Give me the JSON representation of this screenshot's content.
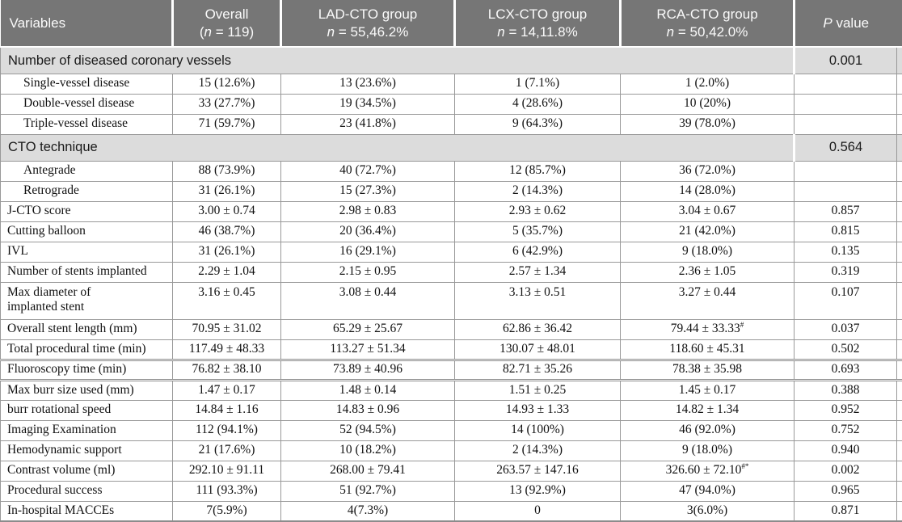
{
  "header": {
    "variables": "Variables",
    "p_value": "P value",
    "groups": [
      {
        "title": "Overall",
        "sub": "(n = 119)"
      },
      {
        "title": "LAD-CTO group",
        "sub": "n = 55,46.2%"
      },
      {
        "title": "LCX-CTO group",
        "sub": "n = 14,11.8%"
      },
      {
        "title": "RCA-CTO group",
        "sub": "n = 50,42.0%"
      }
    ]
  },
  "colors": {
    "header_bg": "#767676",
    "header_text": "#fafafa",
    "section_bg": "#dcdcdc",
    "grid_line": "#999999",
    "body_text": "#111111"
  },
  "rows": [
    {
      "type": "section",
      "label": "Number of diseased coronary vessels",
      "p": "0.001"
    },
    {
      "type": "data",
      "indent": true,
      "label": "Single-vessel disease",
      "values": [
        "15 (12.6%)",
        "13 (23.6%)",
        "1 (7.1%)",
        "1 (2.0%)",
        ""
      ]
    },
    {
      "type": "data",
      "indent": true,
      "label": "Double-vessel disease",
      "values": [
        "33 (27.7%)",
        "19 (34.5%)",
        "4 (28.6%)",
        "10 (20%)",
        ""
      ]
    },
    {
      "type": "data",
      "indent": true,
      "label": "Triple-vessel disease",
      "values": [
        "71 (59.7%)",
        "23 (41.8%)",
        "9 (64.3%)",
        "39 (78.0%)",
        ""
      ]
    },
    {
      "type": "section",
      "label": "CTO technique",
      "p": "0.564"
    },
    {
      "type": "data",
      "indent": true,
      "label": "Antegrade",
      "values": [
        "88 (73.9%)",
        "40 (72.7%)",
        "12 (85.7%)",
        "36 (72.0%)",
        ""
      ]
    },
    {
      "type": "data",
      "indent": true,
      "label": "Retrograde",
      "values": [
        "31 (26.1%)",
        "15 (27.3%)",
        "2 (14.3%)",
        "14 (28.0%)",
        ""
      ]
    },
    {
      "type": "data",
      "label": "J-CTO score",
      "values": [
        "3.00 ± 0.74",
        "2.98 ± 0.83",
        "2.93 ± 0.62",
        "3.04 ± 0.67",
        "0.857"
      ]
    },
    {
      "type": "data",
      "label": "Cutting balloon",
      "values": [
        "46 (38.7%)",
        "20 (36.4%)",
        "5 (35.7%)",
        "21 (42.0%)",
        "0.815"
      ]
    },
    {
      "type": "data",
      "label": "IVL",
      "values": [
        "31 (26.1%)",
        "16 (29.1%)",
        "6 (42.9%)",
        "9 (18.0%)",
        "0.135"
      ]
    },
    {
      "type": "data",
      "label": "Number of stents implanted",
      "values": [
        "2.29 ± 1.04",
        "2.15 ± 0.95",
        "2.57 ± 1.34",
        "2.36 ± 1.05",
        "0.319"
      ]
    },
    {
      "type": "data",
      "tall": true,
      "label": "Max diameter of\nimplanted stent",
      "values": [
        "3.16 ± 0.45",
        "3.08 ± 0.44",
        "3.13 ± 0.51",
        "3.27 ± 0.44",
        "0.107"
      ]
    },
    {
      "type": "data",
      "label": "Overall stent length (mm)",
      "values": [
        "70.95 ± 31.02",
        "65.29 ± 25.67",
        "62.86 ± 36.42",
        {
          "t": "79.44 ± 33.33",
          "sup": "#"
        },
        "0.037"
      ]
    },
    {
      "type": "data",
      "label": "Total procedural time (min)",
      "values": [
        "117.49 ± 48.33",
        "113.27 ± 51.34",
        "130.07 ± 48.01",
        "118.60 ± 45.31",
        "0.502"
      ]
    },
    {
      "type": "data",
      "heavy": true,
      "label": "Fluoroscopy time (min)",
      "values": [
        "76.82 ± 38.10",
        "73.89 ± 40.96",
        "82.71 ± 35.26",
        "78.38 ± 35.98",
        "0.693"
      ]
    },
    {
      "type": "data",
      "label": "Max burr size used (mm)",
      "values": [
        "1.47 ± 0.17",
        "1.48 ± 0.14",
        "1.51 ± 0.25",
        "1.45 ± 0.17",
        "0.388"
      ]
    },
    {
      "type": "data",
      "label": "burr rotational speed",
      "values": [
        "14.84 ± 1.16",
        "14.83 ± 0.96",
        "14.93 ± 1.33",
        "14.82 ± 1.34",
        "0.952"
      ]
    },
    {
      "type": "data",
      "label": "Imaging Examination",
      "values": [
        "112 (94.1%)",
        "52 (94.5%)",
        "14 (100%)",
        "46 (92.0%)",
        "0.752"
      ]
    },
    {
      "type": "data",
      "label": "Hemodynamic support",
      "values": [
        "21 (17.6%)",
        "10 (18.2%)",
        "2 (14.3%)",
        "9 (18.0%)",
        "0.940"
      ]
    },
    {
      "type": "data",
      "label": "Contrast volume (ml)",
      "values": [
        "292.10 ± 91.11",
        "268.00 ± 79.41",
        "263.57 ± 147.16",
        {
          "t": "326.60 ± 72.10",
          "sup": "#*"
        },
        "0.002"
      ]
    },
    {
      "type": "data",
      "label": "Procedural success",
      "values": [
        "111 (93.3%)",
        "51 (92.7%)",
        "13 (92.9%)",
        "47 (94.0%)",
        "0.965"
      ]
    },
    {
      "type": "data",
      "label": "In-hospital MACCEs",
      "values": [
        "7(5.9%)",
        "4(7.3%)",
        "0",
        "3(6.0%)",
        "0.871"
      ]
    }
  ]
}
